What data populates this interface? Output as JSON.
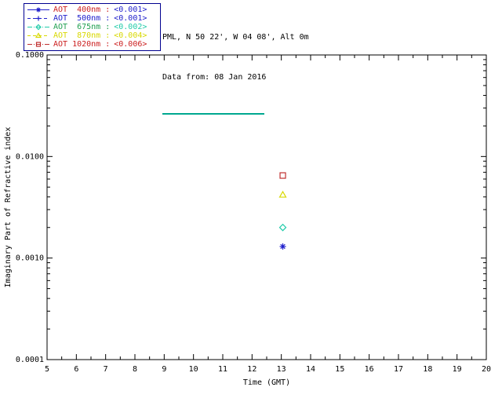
{
  "header": {
    "location_line": "PML, N 50 22', W 04 08', Alt 0m",
    "date_line": "Data from: 08 Jan 2016",
    "underline_color": "#00a890"
  },
  "legend": {
    "border_color": "#000090",
    "rows": [
      {
        "label": "AOT  400nm :",
        "value": "<0.001>",
        "label_color": "#cc2020",
        "value_color": "#2020cc",
        "line_color": "#2020cc",
        "line_style": "solid",
        "marker": "asterisk"
      },
      {
        "label": "AOT  500nm :",
        "value": "<0.001>",
        "label_color": "#2020cc",
        "value_color": "#2020cc",
        "line_color": "#2020cc",
        "line_style": "dashed",
        "marker": "plus"
      },
      {
        "label": "AOT  675nm :",
        "value": "<0.002>",
        "label_color": "#20a050",
        "value_color": "#22ccaa",
        "line_color": "#22ccaa",
        "line_style": "dashdot",
        "marker": "diamond"
      },
      {
        "label": "AOT  870nm :",
        "value": "<0.004>",
        "label_color": "#d8d800",
        "value_color": "#d8d800",
        "line_color": "#d8d800",
        "line_style": "dashed",
        "marker": "triangle"
      },
      {
        "label": "AOT 1020nm :",
        "value": "<0.006>",
        "label_color": "#cc2020",
        "value_color": "#cc2020",
        "line_color": "#c03030",
        "line_style": "dashdot",
        "marker": "square"
      }
    ]
  },
  "chart_data": {
    "type": "scatter",
    "title": "",
    "xlabel": "Time (GMT)",
    "ylabel": "Imaginary Part of Refractive index",
    "xlim": [
      5,
      20
    ],
    "xticks": [
      5,
      6,
      7,
      8,
      9,
      10,
      11,
      12,
      13,
      14,
      15,
      16,
      17,
      18,
      19,
      20
    ],
    "yscale": "log",
    "ylim": [
      0.0001,
      0.1
    ],
    "ytick_values": [
      0.1,
      0.01,
      0.001,
      0.0001
    ],
    "ytick_labels": [
      "0.1000",
      "0.0100",
      "0.0010",
      "0.0001"
    ],
    "grid": false,
    "legend_position": "outside-top-left",
    "series": [
      {
        "name": "AOT 400nm",
        "marker": "asterisk",
        "color": "#2020cc",
        "points": [
          {
            "x": 13.05,
            "y": 0.0013
          }
        ]
      },
      {
        "name": "AOT 675nm",
        "marker": "diamond",
        "color": "#22ccaa",
        "points": [
          {
            "x": 13.05,
            "y": 0.002
          }
        ]
      },
      {
        "name": "AOT 870nm",
        "marker": "triangle",
        "color": "#d8d800",
        "points": [
          {
            "x": 13.05,
            "y": 0.0042
          }
        ]
      },
      {
        "name": "AOT 1020nm",
        "marker": "square",
        "color": "#c03030",
        "points": [
          {
            "x": 13.05,
            "y": 0.0065
          }
        ]
      }
    ]
  }
}
